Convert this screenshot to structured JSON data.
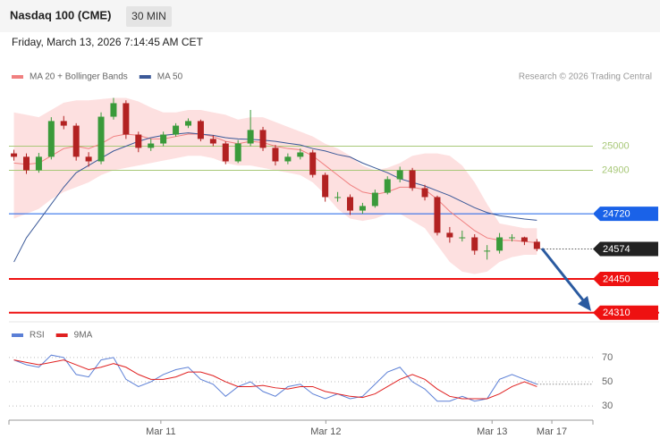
{
  "chart_data": {
    "type": "candlestick",
    "title": "Nasdaq 100 (CME)",
    "timeframe": "30 MIN",
    "subtitle": "Friday, March 13, 2026 7:14:45 AM CET",
    "credit": "Research © 2026 Trading Central",
    "xlim": [
      -0.4,
      46.5
    ],
    "xticks": [
      {
        "value": 11.8,
        "label": "Mar 11"
      },
      {
        "value": 25.05,
        "label": "Mar 12"
      },
      {
        "value": 38.4,
        "label": "Mar 13"
      },
      {
        "value": 43.2,
        "label": "Mar 17"
      }
    ],
    "ylim": [
      24272,
      25250
    ],
    "up_color": "#3a9a3a",
    "down_color": "#b22222",
    "open": [
      24970,
      24956,
      24900,
      24956,
      25104,
      25085,
      24956,
      24937,
      25122,
      25178,
      25048,
      24993,
      25011,
      25048,
      25085,
      25104,
      25030,
      25011,
      24937,
      25011,
      25067,
      24993,
      24937,
      24956,
      24974,
      24881,
      24789,
      24789,
      24733,
      24752,
      24807,
      24863,
      24900,
      24826,
      24789,
      24641,
      24622,
      24622,
      24567,
      24567,
      24622,
      24622,
      24604
    ],
    "high": [
      24985,
      24970,
      24972,
      25120,
      25125,
      25095,
      24975,
      25140,
      25200,
      25190,
      25060,
      25030,
      25060,
      25095,
      25115,
      25110,
      25045,
      25020,
      25025,
      25150,
      25080,
      25005,
      24970,
      24990,
      24985,
      24890,
      24810,
      24800,
      24765,
      24820,
      24875,
      24915,
      24910,
      24840,
      24795,
      24665,
      24650,
      24635,
      24590,
      24640,
      24635,
      24625,
      24615
    ],
    "low": [
      24940,
      24885,
      24890,
      24945,
      25070,
      24940,
      24915,
      24925,
      25110,
      25030,
      24975,
      24980,
      25000,
      25040,
      25075,
      25020,
      25000,
      24925,
      24930,
      25000,
      24980,
      24920,
      24925,
      24945,
      24870,
      24770,
      24770,
      24715,
      24720,
      24745,
      24800,
      24850,
      24815,
      24775,
      24630,
      24600,
      24605,
      24550,
      24530,
      24555,
      24605,
      24590,
      24565
    ],
    "close": [
      24956,
      24900,
      24956,
      25104,
      25085,
      24956,
      24937,
      25122,
      25178,
      25048,
      24993,
      25011,
      25048,
      25085,
      25104,
      25030,
      25011,
      24937,
      25011,
      25067,
      24993,
      24937,
      24956,
      24974,
      24881,
      24789,
      24789,
      24733,
      24752,
      24807,
      24863,
      24900,
      24826,
      24789,
      24641,
      24622,
      24622,
      24567,
      24567,
      24622,
      24622,
      24604,
      24574
    ],
    "series": [
      {
        "name": "MA 20 + Bollinger Bands",
        "color": "#f08080",
        "values": [
          24930,
          24925,
          24930,
          24960,
          24990,
          25000,
          24990,
          25010,
          25040,
          25050,
          25045,
          25030,
          25030,
          25040,
          25050,
          25050,
          25040,
          25020,
          25010,
          25020,
          25015,
          25000,
          24990,
          24985,
          24960,
          24920,
          24880,
          24840,
          24810,
          24800,
          24810,
          24830,
          24830,
          24820,
          24780,
          24730,
          24690,
          24650,
          24620,
          24610,
          24610,
          24605,
          24600
        ],
        "upper": [
          25140,
          25130,
          25120,
          25150,
          25180,
          25190,
          25190,
          25195,
          25200,
          25200,
          25185,
          25160,
          25140,
          25140,
          25150,
          25150,
          25140,
          25130,
          25110,
          25120,
          25120,
          25100,
          25080,
          25060,
          25040,
          25010,
          24990,
          24960,
          24920,
          24900,
          24910,
          24930,
          24960,
          24970,
          24970,
          24960,
          24920,
          24850,
          24760,
          24680,
          24670,
          24660,
          24660
        ],
        "lower": [
          24700,
          24720,
          24740,
          24780,
          24810,
          24830,
          24850,
          24880,
          24900,
          24910,
          24920,
          24930,
          24940,
          24950,
          24960,
          24960,
          24950,
          24930,
          24920,
          24920,
          24910,
          24900,
          24890,
          24880,
          24850,
          24800,
          24740,
          24700,
          24690,
          24700,
          24720,
          24720,
          24690,
          24660,
          24590,
          24520,
          24480,
          24470,
          24480,
          24520,
          24540,
          24550,
          24550
        ],
        "band_color": "#fde0e0"
      },
      {
        "name": "MA 50",
        "color": "#3b5998",
        "values": [
          24520,
          24620,
          24690,
          24760,
          24830,
          24890,
          24920,
          24950,
          24980,
          25000,
          25020,
          25035,
          25045,
          25050,
          25055,
          25050,
          25045,
          25035,
          25030,
          25028,
          25025,
          25020,
          25012,
          25005,
          24990,
          24980,
          24965,
          24955,
          24930,
          24910,
          24890,
          24865,
          24850,
          24835,
          24815,
          24795,
          24770,
          24745,
          24725,
          24712,
          24705,
          24698,
          24693
        ]
      }
    ],
    "levels": [
      {
        "value": 25000,
        "color": "#a8c878",
        "boxed": false,
        "width": 1
      },
      {
        "value": 24900,
        "color": "#a8c878",
        "boxed": false,
        "width": 1
      },
      {
        "value": 24720,
        "color": "#1a62e8",
        "boxed": true,
        "width": 1
      },
      {
        "value": 24574,
        "color": "#222222",
        "boxed": true,
        "width": 1,
        "dotted": true
      },
      {
        "value": 24450,
        "color": "#ee1111",
        "boxed": true,
        "width": 2
      },
      {
        "value": 24310,
        "color": "#ee1111",
        "boxed": true,
        "width": 2
      }
    ],
    "rsi": {
      "ylim": [
        22,
        81
      ],
      "yticks": [
        70,
        50,
        30
      ],
      "series": [
        {
          "name": "RSI",
          "color": "#5b7fd6",
          "values": [
            68,
            64,
            62,
            72,
            70,
            56,
            54,
            68,
            70,
            52,
            46,
            50,
            56,
            60,
            62,
            52,
            48,
            38,
            46,
            50,
            42,
            38,
            46,
            48,
            40,
            36,
            40,
            36,
            38,
            48,
            58,
            62,
            50,
            44,
            34,
            34,
            38,
            34,
            36,
            52,
            56,
            52,
            48
          ]
        },
        {
          "name": "9MA",
          "color": "#e02020",
          "values": [
            68,
            66,
            64,
            66,
            68,
            64,
            60,
            62,
            65,
            62,
            56,
            52,
            52,
            54,
            58,
            58,
            55,
            50,
            46,
            46,
            47,
            45,
            44,
            46,
            46,
            42,
            40,
            38,
            37,
            40,
            46,
            52,
            56,
            52,
            44,
            38,
            36,
            36,
            36,
            40,
            46,
            50,
            46
          ]
        }
      ]
    }
  }
}
